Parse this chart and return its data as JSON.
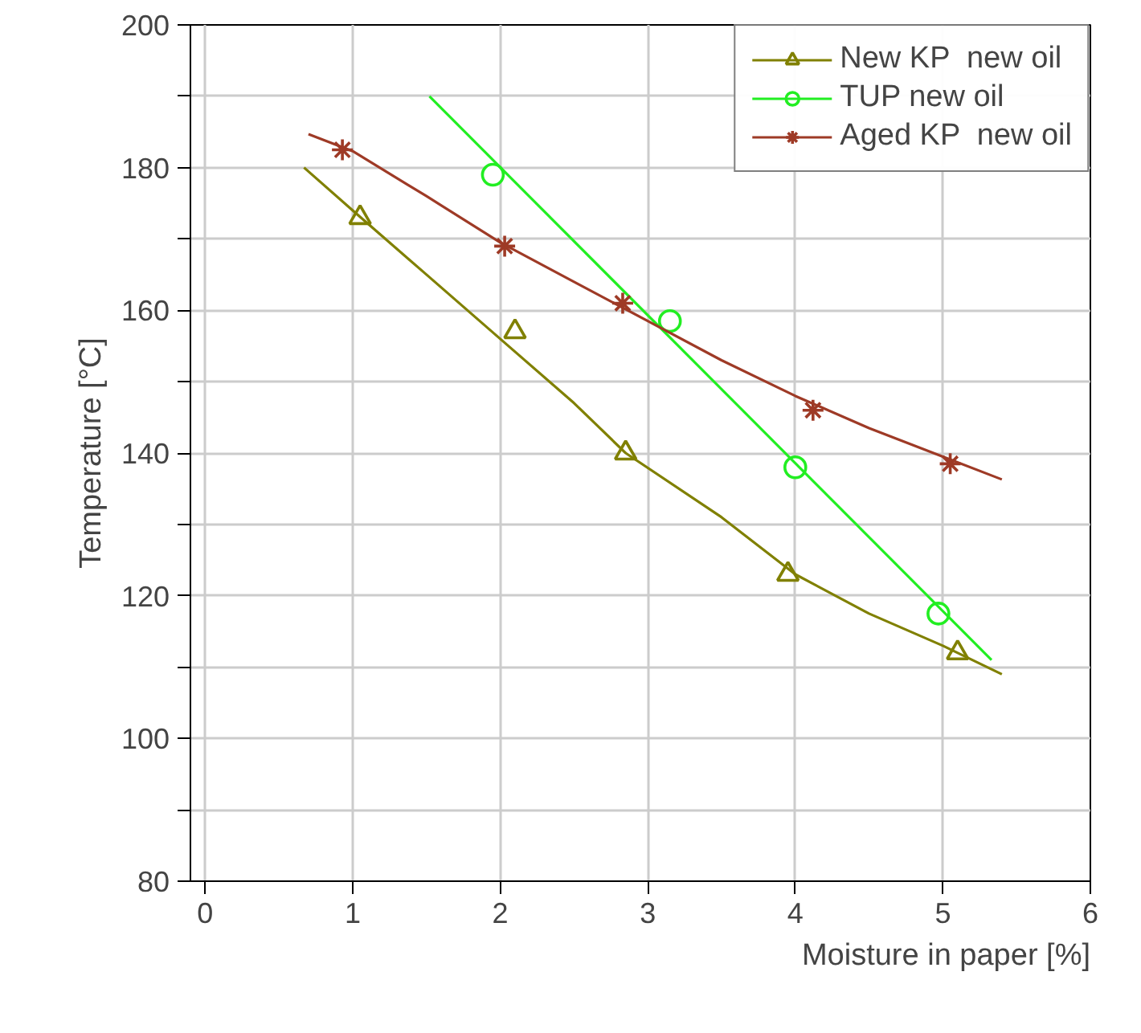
{
  "chart_data": {
    "type": "scatter",
    "xlabel": "Moisture in paper [%]",
    "ylabel": "Temperature [°C]",
    "xlim": [
      -0.1,
      6.0
    ],
    "ylim": [
      80,
      200
    ],
    "xticks": [
      0,
      1,
      2,
      3,
      4,
      5,
      6
    ],
    "yticks": [
      80,
      {
        "value": 90,
        "label": null
      },
      100,
      {
        "value": 110,
        "label": null
      },
      120,
      {
        "value": 130,
        "label": null
      },
      140,
      {
        "value": 150,
        "label": null
      },
      160,
      {
        "value": 170,
        "label": null
      },
      180,
      {
        "value": 190,
        "label": null
      },
      200
    ],
    "grid": true,
    "legend": "top right",
    "series": [
      {
        "name": "New KP  new oil",
        "marker": "triangle",
        "color": "#808000",
        "x": [
          1.05,
          2.1,
          2.85,
          3.95,
          5.1
        ],
        "values": [
          173,
          157,
          140,
          123,
          112
        ]
      },
      {
        "type": "line",
        "marker": "none",
        "color": "#808000",
        "x": [
          0.67,
          1.0,
          1.5,
          2.0,
          2.5,
          2.85,
          3.5,
          4.0,
          4.5,
          5.0,
          5.4
        ],
        "values": [
          180,
          174,
          165,
          156,
          147,
          140,
          131,
          123,
          117.5,
          113,
          109
        ]
      },
      {
        "name": "TUP new oil",
        "marker": "circle",
        "color": "#22ee22",
        "x": [
          1.95,
          3.15,
          4.0,
          4.97
        ],
        "values": [
          179,
          158.5,
          138,
          117.5
        ]
      },
      {
        "type": "line",
        "marker": "none",
        "color": "#22ee22",
        "x": [
          1.52,
          5.33
        ],
        "values": [
          190,
          111
        ]
      },
      {
        "name": "Aged KP  new oil",
        "marker": "cross",
        "color": "#9e3a26",
        "x": [
          0.93,
          2.03,
          2.83,
          4.12,
          5.05
        ],
        "values": [
          182.5,
          169,
          161,
          146,
          138.5
        ]
      },
      {
        "type": "line",
        "marker": "none",
        "color": "#9e3a26",
        "x": [
          0.7,
          1.0,
          1.5,
          2.0,
          2.5,
          3.0,
          3.5,
          4.0,
          4.5,
          5.0,
          5.4
        ],
        "values": [
          184.7,
          182.3,
          176,
          169.5,
          164,
          158.5,
          153,
          148,
          143.5,
          139.5,
          136.3
        ]
      }
    ]
  }
}
